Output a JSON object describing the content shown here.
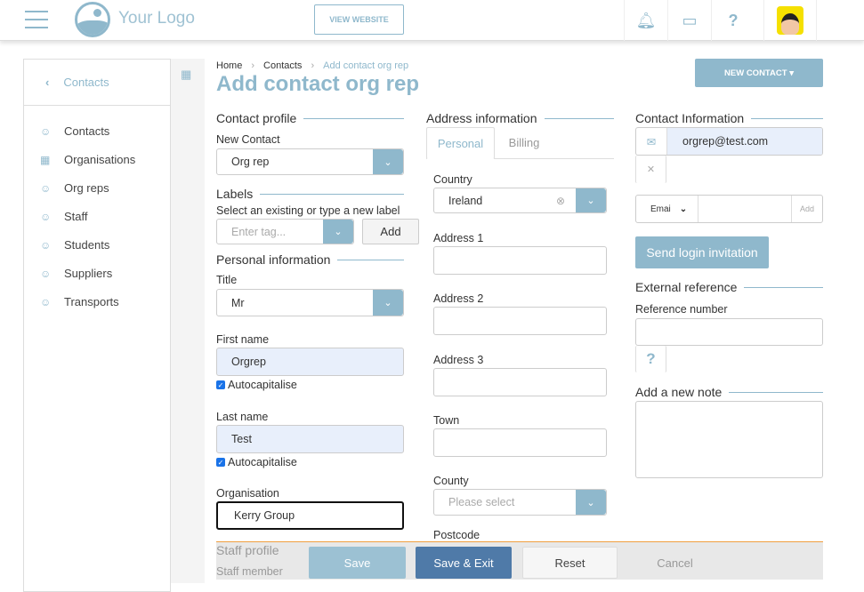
{
  "header": {
    "logo_text": "Your Logo",
    "view_website": "VIEW WEBSITE",
    "icons": [
      "bell-icon",
      "inbox-icon",
      "help-icon",
      "avatar"
    ]
  },
  "sidebar": {
    "back_label": "Contacts",
    "items": [
      {
        "label": "Contacts"
      },
      {
        "label": "Organisations"
      },
      {
        "label": "Org reps"
      },
      {
        "label": "Staff"
      },
      {
        "label": "Students"
      },
      {
        "label": "Suppliers"
      },
      {
        "label": "Transports"
      }
    ]
  },
  "breadcrumb": {
    "home": "Home",
    "contacts": "Contacts",
    "current": "Add contact org rep"
  },
  "page_title": "Add contact org rep",
  "new_contact_button": "NEW CONTACT ▾",
  "col1": {
    "contact_profile": "Contact profile",
    "new_contact_label": "New Contact",
    "new_contact_value": "Org rep",
    "labels_title": "Labels",
    "labels_hint": "Select an existing or type a new label",
    "tag_placeholder": "Enter tag...",
    "add": "Add",
    "personal_info": "Personal information",
    "title_label": "Title",
    "title_value": "Mr",
    "first_name_label": "First name",
    "first_name_value": "Orgrep",
    "autocap": "Autocapitalise",
    "last_name_label": "Last name",
    "last_name_value": "Test",
    "organisation_label": "Organisation",
    "organisation_value": "Kerry Group",
    "staff_profile": "Staff profile",
    "staff_member": "Staff member"
  },
  "col2": {
    "address_info": "Address information",
    "tabs": [
      "Personal",
      "Billing"
    ],
    "country_label": "Country",
    "country_value": "Ireland",
    "address1": "Address 1",
    "address2": "Address 2",
    "address3": "Address 3",
    "town": "Town",
    "county": "County",
    "county_placeholder": "Please select",
    "postcode": "Postcode"
  },
  "col3": {
    "contact_info": "Contact Information",
    "email_value": "orgrep@test.com",
    "type_select": "Emai",
    "add": "Add",
    "send_login": "Send login invitation",
    "external_ref": "External reference",
    "ref_number": "Reference number",
    "add_note": "Add a new note"
  },
  "footer": {
    "save": "Save",
    "save_exit": "Save & Exit",
    "reset": "Reset",
    "cancel": "Cancel"
  },
  "colors": {
    "accent": "#8fb8cc",
    "primary": "#4f7aa8",
    "footer_border": "#f0a040"
  }
}
